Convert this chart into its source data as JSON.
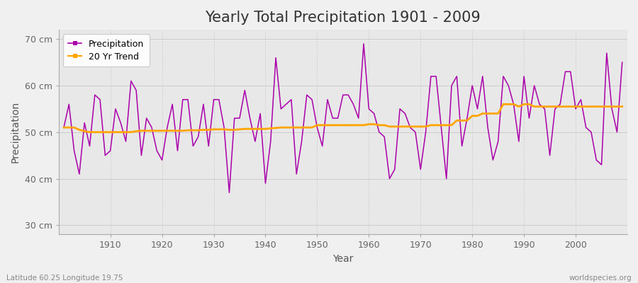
{
  "title": "Yearly Total Precipitation 1901 - 2009",
  "xlabel": "Year",
  "ylabel": "Precipitation",
  "footnote_left": "Latitude 60.25 Longitude 19.75",
  "footnote_right": "worldspecies.org",
  "years": [
    1901,
    1902,
    1903,
    1904,
    1905,
    1906,
    1907,
    1908,
    1909,
    1910,
    1911,
    1912,
    1913,
    1914,
    1915,
    1916,
    1917,
    1918,
    1919,
    1920,
    1921,
    1922,
    1923,
    1924,
    1925,
    1926,
    1927,
    1928,
    1929,
    1930,
    1931,
    1932,
    1933,
    1934,
    1935,
    1936,
    1937,
    1938,
    1939,
    1940,
    1941,
    1942,
    1943,
    1944,
    1945,
    1946,
    1947,
    1948,
    1949,
    1950,
    1951,
    1952,
    1953,
    1954,
    1955,
    1956,
    1957,
    1958,
    1959,
    1960,
    1961,
    1962,
    1963,
    1964,
    1965,
    1966,
    1967,
    1968,
    1969,
    1970,
    1971,
    1972,
    1973,
    1974,
    1975,
    1976,
    1977,
    1978,
    1979,
    1980,
    1981,
    1982,
    1983,
    1984,
    1985,
    1986,
    1987,
    1988,
    1989,
    1990,
    1991,
    1992,
    1993,
    1994,
    1995,
    1996,
    1997,
    1998,
    1999,
    2000,
    2001,
    2002,
    2003,
    2004,
    2005,
    2006,
    2007,
    2008,
    2009
  ],
  "precip": [
    51,
    56,
    46,
    41,
    52,
    47,
    58,
    57,
    45,
    46,
    55,
    52,
    48,
    61,
    59,
    45,
    53,
    51,
    46,
    44,
    51,
    56,
    46,
    57,
    57,
    47,
    49,
    56,
    47,
    57,
    57,
    51,
    37,
    53,
    53,
    59,
    53,
    48,
    54,
    39,
    48,
    66,
    55,
    56,
    57,
    41,
    48,
    58,
    57,
    51,
    47,
    57,
    53,
    53,
    58,
    58,
    56,
    53,
    69,
    55,
    54,
    50,
    49,
    40,
    42,
    55,
    54,
    51,
    50,
    42,
    50,
    62,
    62,
    51,
    40,
    60,
    62,
    47,
    53,
    60,
    55,
    62,
    51,
    44,
    48,
    62,
    60,
    56,
    48,
    62,
    53,
    60,
    56,
    55,
    45,
    55,
    56,
    63,
    63,
    55,
    57,
    51,
    50,
    44,
    43,
    67,
    55,
    50,
    65
  ],
  "trend": [
    51.0,
    51.0,
    51.0,
    50.5,
    50.2,
    50.0,
    50.0,
    50.0,
    50.0,
    50.0,
    50.0,
    50.0,
    50.0,
    50.0,
    50.2,
    50.3,
    50.3,
    50.3,
    50.3,
    50.3,
    50.3,
    50.3,
    50.3,
    50.3,
    50.4,
    50.4,
    50.4,
    50.5,
    50.5,
    50.6,
    50.6,
    50.6,
    50.5,
    50.5,
    50.6,
    50.7,
    50.7,
    50.7,
    50.7,
    50.7,
    50.8,
    50.9,
    51.0,
    51.0,
    51.0,
    51.0,
    51.0,
    51.0,
    51.0,
    51.5,
    51.5,
    51.5,
    51.5,
    51.5,
    51.5,
    51.5,
    51.5,
    51.5,
    51.5,
    51.7,
    51.7,
    51.5,
    51.5,
    51.2,
    51.2,
    51.2,
    51.2,
    51.2,
    51.2,
    51.2,
    51.2,
    51.5,
    51.5,
    51.5,
    51.5,
    51.5,
    52.5,
    52.5,
    52.5,
    53.5,
    53.5,
    54.0,
    54.0,
    54.0,
    54.0,
    56.0,
    56.0,
    56.0,
    55.5,
    56.0,
    56.0,
    55.5,
    55.5,
    55.5,
    55.5,
    55.5,
    55.5,
    55.5,
    55.5,
    55.5,
    55.5,
    55.5,
    55.5,
    55.5,
    55.5,
    55.5,
    55.5,
    55.5,
    55.5
  ],
  "precip_color": "#aa00aa",
  "trend_color": "#ffa500",
  "fig_bg_color": "#f0f0f0",
  "plot_bg_color": "#e8e8e8",
  "grid_color_h": "#cccccc",
  "grid_color_v": "#cccccc",
  "ylim": [
    28,
    72
  ],
  "yticks": [
    30,
    40,
    50,
    60,
    70
  ],
  "ytick_labels": [
    "30 cm",
    "40 cm",
    "50 cm",
    "60 cm",
    "70 cm"
  ],
  "xlim": [
    1900,
    2010
  ],
  "xticks": [
    1910,
    1920,
    1930,
    1940,
    1950,
    1960,
    1970,
    1980,
    1990,
    2000
  ],
  "title_fontsize": 15,
  "label_fontsize": 10,
  "tick_fontsize": 9,
  "legend_fontsize": 9
}
